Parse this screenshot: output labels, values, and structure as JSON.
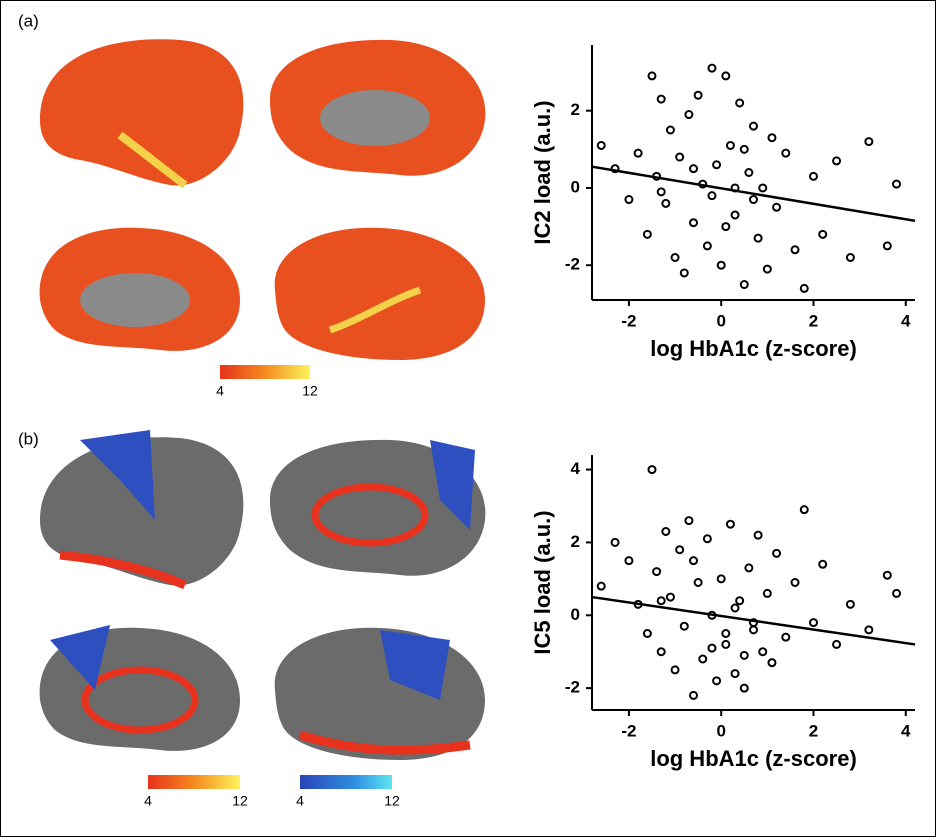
{
  "figure": {
    "panel_labels": [
      "(a)",
      "(b)"
    ],
    "colorbar_labels": [
      [
        "4",
        "12"
      ],
      [
        "4",
        "12"
      ],
      [
        "4",
        "12"
      ]
    ]
  },
  "chart_data": [
    {
      "type": "scatter",
      "xlabel": "log HbA1c (z-score)",
      "ylabel": "IC2 load (a.u.)",
      "color": "#000000",
      "xlim": [
        -2.8,
        4.2
      ],
      "ylim": [
        -2.9,
        3.7
      ],
      "xticks": [
        -2,
        0,
        2,
        4
      ],
      "yticks": [
        -2,
        0,
        2
      ],
      "x": [
        -2.6,
        -2.3,
        -2.0,
        -1.8,
        -1.6,
        -1.5,
        -1.4,
        -1.3,
        -1.2,
        -1.1,
        -1.0,
        -0.9,
        -0.8,
        -0.7,
        -0.6,
        -0.5,
        -0.4,
        -0.3,
        -0.2,
        -0.1,
        0.0,
        0.1,
        0.2,
        0.3,
        0.4,
        0.5,
        0.6,
        0.7,
        0.8,
        0.9,
        1.0,
        1.1,
        1.2,
        1.4,
        1.6,
        1.8,
        2.0,
        2.2,
        2.5,
        2.8,
        3.2,
        3.6,
        3.8,
        -0.2,
        0.3,
        0.1,
        -0.6,
        0.5,
        -1.3,
        0.7
      ],
      "y": [
        1.1,
        0.5,
        -0.3,
        0.9,
        -1.2,
        2.9,
        0.3,
        2.3,
        -0.4,
        1.5,
        -1.8,
        0.8,
        -2.2,
        1.9,
        -0.9,
        2.4,
        0.1,
        -1.5,
        3.1,
        0.6,
        -2.0,
        2.9,
        1.1,
        -0.7,
        2.2,
        -2.5,
        0.4,
        1.6,
        -1.3,
        0.0,
        -2.1,
        1.3,
        -0.5,
        0.9,
        -1.6,
        -2.6,
        0.3,
        -1.2,
        0.7,
        -1.8,
        1.2,
        -1.5,
        0.1,
        -0.2,
        0.0,
        -1.0,
        0.5,
        1.0,
        -0.1,
        -0.3
      ],
      "fit": {
        "x": [
          -2.8,
          4.2
        ],
        "y": [
          0.55,
          -0.85
        ]
      }
    },
    {
      "type": "scatter",
      "xlabel": "log HbA1c (z-score)",
      "ylabel": "IC5 load (a.u.)",
      "color": "#000000",
      "xlim": [
        -2.8,
        4.2
      ],
      "ylim": [
        -2.6,
        4.4
      ],
      "xticks": [
        -2,
        0,
        2,
        4
      ],
      "yticks": [
        -2,
        0,
        2,
        4
      ],
      "x": [
        -2.6,
        -2.3,
        -2.0,
        -1.8,
        -1.6,
        -1.5,
        -1.4,
        -1.3,
        -1.2,
        -1.1,
        -1.0,
        -0.9,
        -0.8,
        -0.7,
        -0.6,
        -0.5,
        -0.4,
        -0.3,
        -0.2,
        -0.1,
        0.0,
        0.1,
        0.2,
        0.3,
        0.4,
        0.5,
        0.6,
        0.7,
        0.8,
        0.9,
        1.0,
        1.1,
        1.2,
        1.4,
        1.6,
        1.8,
        2.0,
        2.2,
        2.5,
        2.8,
        3.2,
        3.6,
        3.8,
        -0.2,
        0.3,
        0.1,
        -0.6,
        0.5,
        -1.3,
        0.7
      ],
      "y": [
        0.8,
        2.0,
        1.5,
        0.3,
        -0.5,
        4.0,
        1.2,
        -1.0,
        2.3,
        0.5,
        -1.5,
        1.8,
        -0.3,
        2.6,
        -2.2,
        0.9,
        -1.2,
        2.1,
        0.0,
        -1.8,
        1.0,
        -0.8,
        2.5,
        -1.6,
        0.4,
        -2.0,
        1.3,
        -0.4,
        2.2,
        -1.0,
        0.6,
        -1.3,
        1.7,
        -0.6,
        0.9,
        2.9,
        -0.2,
        1.4,
        -0.8,
        0.3,
        -0.4,
        1.1,
        0.6,
        -0.9,
        0.2,
        -0.5,
        1.5,
        -1.1,
        0.4,
        -0.2
      ],
      "fit": {
        "x": [
          -2.8,
          4.2
        ],
        "y": [
          0.5,
          -0.8
        ]
      }
    }
  ]
}
